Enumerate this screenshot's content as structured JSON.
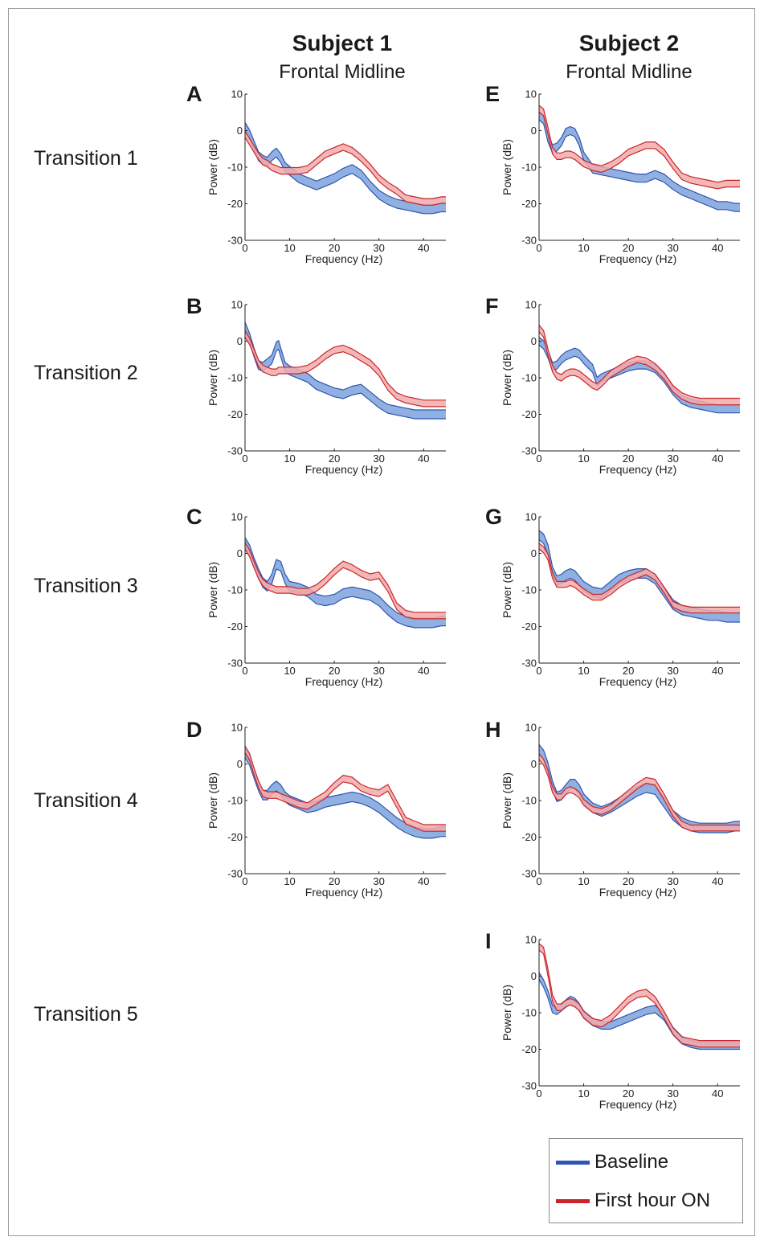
{
  "headers": {
    "subject1": {
      "title": "Subject 1",
      "region": "Frontal Midline"
    },
    "subject2": {
      "title": "Subject 2",
      "region": "Frontal Midline"
    }
  },
  "transitions": [
    "Transition 1",
    "Transition 2",
    "Transition 3",
    "Transition 4",
    "Transition 5"
  ],
  "legend": {
    "baseline": {
      "label": "Baseline",
      "color": "#2f56b0"
    },
    "first_hour": {
      "label": "First hour ON",
      "color": "#c8262a"
    }
  },
  "colors": {
    "baseline_fill": "#7ea2dd",
    "first_hour_fill": "#f2aaaa"
  },
  "chart_data": [
    {
      "panel": "A",
      "type": "line",
      "xlabel": "Frequency (Hz)",
      "ylabel": "Power (dB)",
      "xlim": [
        0,
        45
      ],
      "ylim": [
        -30,
        10
      ],
      "xticks": [
        0,
        10,
        20,
        30,
        40
      ],
      "yticks": [
        10,
        0,
        -10,
        -20,
        -30
      ],
      "x": [
        0,
        1,
        2,
        3,
        4,
        5,
        6,
        7,
        8,
        9,
        10,
        12,
        14,
        16,
        18,
        20,
        22,
        24,
        26,
        28,
        30,
        32,
        34,
        36,
        38,
        40,
        42,
        44,
        45
      ],
      "series": [
        {
          "name": "Baseline",
          "values": [
            1,
            -1,
            -4,
            -7,
            -8,
            -8.5,
            -7,
            -6,
            -7.5,
            -10,
            -11,
            -13,
            -14,
            -15,
            -14,
            -13,
            -11.5,
            -10.5,
            -12,
            -15,
            -17.5,
            -19,
            -20,
            -20.5,
            -21,
            -21.5,
            -21.5,
            -21,
            -21
          ],
          "band": 1.2
        },
        {
          "name": "First hour ON",
          "values": [
            -1,
            -3,
            -5,
            -7,
            -8.5,
            -9,
            -10,
            -10.5,
            -11,
            -11,
            -11,
            -11,
            -10.5,
            -8.5,
            -6.5,
            -5.5,
            -4.5,
            -5.5,
            -7.5,
            -10,
            -13,
            -15,
            -16.5,
            -18.5,
            -19,
            -19.5,
            -19.5,
            -19,
            -19
          ],
          "band": 0.9
        }
      ]
    },
    {
      "panel": "B",
      "type": "line",
      "xlabel": "Frequency (Hz)",
      "ylabel": "Power (dB)",
      "xlim": [
        0,
        45
      ],
      "ylim": [
        -30,
        10
      ],
      "xticks": [
        0,
        10,
        20,
        30,
        40
      ],
      "yticks": [
        10,
        0,
        -10,
        -20,
        -30
      ],
      "x": [
        0,
        1,
        2,
        3,
        4,
        5,
        6,
        7,
        7.5,
        8,
        9,
        10,
        12,
        14,
        16,
        18,
        20,
        22,
        24,
        26,
        28,
        30,
        32,
        34,
        36,
        38,
        40,
        42,
        44,
        45
      ],
      "series": [
        {
          "name": "Baseline",
          "values": [
            4,
            1,
            -3,
            -6.5,
            -7,
            -6,
            -5,
            -1.5,
            -1,
            -3,
            -7,
            -8,
            -9,
            -10,
            -12,
            -13,
            -14,
            -14.5,
            -13.5,
            -13,
            -15,
            -17,
            -18.5,
            -19,
            -19.5,
            -20,
            -20,
            -20,
            -20,
            -20
          ],
          "band": 1.2
        },
        {
          "name": "First hour ON",
          "values": [
            2,
            0,
            -3,
            -6,
            -7.5,
            -8,
            -8.5,
            -8.5,
            -8,
            -8,
            -8,
            -8,
            -8,
            -7.5,
            -6,
            -4,
            -2.5,
            -2,
            -3,
            -4.5,
            -6,
            -8.5,
            -12.5,
            -15,
            -16,
            -16.5,
            -17,
            -17,
            -17,
            -17
          ],
          "band": 0.9
        }
      ]
    },
    {
      "panel": "C",
      "type": "line",
      "xlabel": "Frequency (Hz)",
      "ylabel": "Power (dB)",
      "xlim": [
        0,
        45
      ],
      "ylim": [
        -30,
        10
      ],
      "xticks": [
        0,
        10,
        20,
        30,
        40
      ],
      "yticks": [
        10,
        0,
        -10,
        -20,
        -30
      ],
      "x": [
        0,
        1,
        2,
        3,
        4,
        5,
        6,
        7,
        8,
        9,
        10,
        12,
        14,
        16,
        18,
        20,
        22,
        24,
        26,
        28,
        30,
        32,
        34,
        36,
        38,
        40,
        42,
        44,
        45
      ],
      "series": [
        {
          "name": "Baseline",
          "values": [
            3,
            1,
            -2.5,
            -5.5,
            -8,
            -9,
            -7,
            -3,
            -3.5,
            -7,
            -9,
            -9.5,
            -10.5,
            -12.5,
            -13,
            -12.5,
            -11,
            -10.5,
            -11,
            -11.5,
            -13,
            -15.5,
            -17.5,
            -18.5,
            -19,
            -19,
            -19,
            -18.5,
            -18.5
          ],
          "band": 1.3
        },
        {
          "name": "First hour ON",
          "values": [
            2,
            0,
            -3,
            -6,
            -8,
            -9,
            -9.5,
            -10,
            -10,
            -10,
            -10,
            -10.5,
            -10.5,
            -9.5,
            -7.5,
            -5,
            -3,
            -4,
            -5.5,
            -6.5,
            -6,
            -9.5,
            -14.5,
            -16.5,
            -17,
            -17,
            -17,
            -17,
            -17
          ],
          "band": 0.9
        }
      ]
    },
    {
      "panel": "D",
      "type": "line",
      "xlabel": "Frequency (Hz)",
      "ylabel": "Power (dB)",
      "xlim": [
        0,
        45
      ],
      "ylim": [
        -30,
        10
      ],
      "xticks": [
        0,
        10,
        20,
        30,
        40
      ],
      "yticks": [
        10,
        0,
        -10,
        -20,
        -30
      ],
      "x": [
        0,
        1,
        2,
        3,
        4,
        5,
        6,
        7,
        8,
        9,
        10,
        12,
        14,
        16,
        18,
        20,
        22,
        24,
        26,
        28,
        30,
        32,
        34,
        36,
        38,
        40,
        42,
        44,
        45
      ],
      "series": [
        {
          "name": "Baseline",
          "values": [
            3,
            1,
            -2.5,
            -6,
            -8.5,
            -8.5,
            -7,
            -6,
            -7,
            -9,
            -10,
            -11,
            -12,
            -11.5,
            -10.5,
            -10,
            -9.5,
            -9,
            -9.5,
            -10.5,
            -12,
            -14,
            -16,
            -17.5,
            -18.5,
            -19,
            -19,
            -18.5,
            -18.5
          ],
          "band": 1.3
        },
        {
          "name": "First hour ON",
          "values": [
            4,
            2,
            -2,
            -5.5,
            -8,
            -8.5,
            -8.5,
            -8.5,
            -9,
            -9.5,
            -10,
            -11,
            -11.5,
            -10,
            -8.5,
            -6,
            -4,
            -4.5,
            -6.5,
            -7.5,
            -8,
            -6.5,
            -11,
            -15.5,
            -16.5,
            -17.5,
            -17.5,
            -17.5,
            -17.5
          ],
          "band": 0.9
        }
      ]
    },
    {
      "panel": "E",
      "type": "line",
      "xlabel": "Frequency (Hz)",
      "ylabel": "Power (dB)",
      "xlim": [
        0,
        45
      ],
      "ylim": [
        -30,
        10
      ],
      "xticks": [
        0,
        10,
        20,
        30,
        40
      ],
      "yticks": [
        10,
        0,
        -10,
        -20,
        -30
      ],
      "x": [
        0,
        1,
        2,
        3,
        4,
        5,
        6,
        7,
        8,
        9,
        10,
        12,
        14,
        16,
        18,
        20,
        22,
        24,
        26,
        28,
        30,
        32,
        34,
        36,
        38,
        40,
        42,
        44,
        45
      ],
      "series": [
        {
          "name": "Baseline",
          "values": [
            4,
            3,
            -2,
            -5,
            -4.5,
            -3,
            -0.5,
            0,
            -0.5,
            -3,
            -7,
            -10.5,
            -11,
            -11.5,
            -12,
            -12.5,
            -13,
            -13,
            -12,
            -13,
            -15,
            -16.5,
            -17.5,
            -18.5,
            -19.5,
            -20.5,
            -20.5,
            -21,
            -21
          ],
          "band": 1.1
        },
        {
          "name": "First hour ON",
          "values": [
            6,
            5,
            0,
            -5.5,
            -7,
            -7,
            -6.5,
            -6.5,
            -7,
            -8,
            -9,
            -10,
            -10.5,
            -9.5,
            -8,
            -6,
            -5,
            -4,
            -4,
            -6,
            -9.5,
            -12.5,
            -13.5,
            -14,
            -14.5,
            -15,
            -14.5,
            -14.5,
            -14.5
          ],
          "band": 0.9
        }
      ]
    },
    {
      "panel": "F",
      "type": "line",
      "xlabel": "Frequency (Hz)",
      "ylabel": "Power (dB)",
      "xlim": [
        0,
        45
      ],
      "ylim": [
        -30,
        10
      ],
      "xticks": [
        0,
        10,
        20,
        30,
        40
      ],
      "yticks": [
        10,
        0,
        -10,
        -20,
        -30
      ],
      "x": [
        0,
        1,
        2,
        3,
        4,
        5,
        6,
        7,
        8,
        9,
        10,
        12,
        13,
        14,
        16,
        18,
        20,
        22,
        24,
        26,
        28,
        30,
        32,
        34,
        36,
        38,
        40,
        42,
        44,
        45
      ],
      "series": [
        {
          "name": "Baseline",
          "values": [
            0,
            -1,
            -3.5,
            -7,
            -6.5,
            -5,
            -4,
            -3.5,
            -3,
            -3.5,
            -5,
            -7.5,
            -11,
            -10,
            -9,
            -8,
            -7,
            -6.5,
            -6.5,
            -7.5,
            -10,
            -13.5,
            -16,
            -17,
            -17.5,
            -18,
            -18.5,
            -18.5,
            -18.5,
            -18.5
          ],
          "band": 1.1
        },
        {
          "name": "First hour ON",
          "values": [
            3.5,
            2,
            -3,
            -7.5,
            -9.5,
            -10,
            -9,
            -8.5,
            -8.5,
            -9,
            -10,
            -12,
            -12.5,
            -11.5,
            -9,
            -7.5,
            -6,
            -5,
            -5.5,
            -7,
            -9.5,
            -13,
            -15,
            -16,
            -16.5,
            -16.5,
            -16.5,
            -16.5,
            -16.5,
            -16.5
          ],
          "band": 0.9
        }
      ]
    },
    {
      "panel": "G",
      "type": "line",
      "xlabel": "Frequency (Hz)",
      "ylabel": "Power (dB)",
      "xlim": [
        0,
        45
      ],
      "ylim": [
        -30,
        10
      ],
      "xticks": [
        0,
        10,
        20,
        30,
        40
      ],
      "yticks": [
        10,
        0,
        -10,
        -20,
        -30
      ],
      "x": [
        0,
        1,
        2,
        3,
        4,
        5,
        6,
        7,
        8,
        9,
        10,
        12,
        14,
        16,
        18,
        20,
        22,
        24,
        26,
        28,
        30,
        32,
        34,
        36,
        38,
        40,
        42,
        44,
        45
      ],
      "series": [
        {
          "name": "Baseline",
          "values": [
            5,
            4,
            1,
            -5,
            -7.5,
            -7,
            -6,
            -5.5,
            -6,
            -7.5,
            -9,
            -10.5,
            -11,
            -9,
            -7,
            -6,
            -5.5,
            -5.5,
            -7,
            -10.5,
            -14,
            -15.5,
            -16,
            -16.5,
            -17,
            -17,
            -17.5,
            -17.5,
            -17.5
          ],
          "band": 1.3
        },
        {
          "name": "First hour ON",
          "values": [
            2,
            1,
            -1,
            -6,
            -8.5,
            -8.5,
            -8.5,
            -8,
            -8.5,
            -9.5,
            -10.5,
            -12,
            -12,
            -10.5,
            -8.5,
            -7,
            -6,
            -5,
            -6.5,
            -10,
            -14,
            -15,
            -15.5,
            -15.5,
            -15.5,
            -15.5,
            -15.5,
            -15.5,
            -15.5
          ],
          "band": 0.8
        }
      ]
    },
    {
      "panel": "H",
      "type": "line",
      "xlabel": "Frequency (Hz)",
      "ylabel": "Power (dB)",
      "xlim": [
        0,
        45
      ],
      "ylim": [
        -30,
        10
      ],
      "xticks": [
        0,
        10,
        20,
        30,
        40
      ],
      "yticks": [
        10,
        0,
        -10,
        -20,
        -30
      ],
      "x": [
        0,
        1,
        2,
        3,
        4,
        5,
        6,
        7,
        8,
        9,
        10,
        12,
        14,
        16,
        18,
        20,
        22,
        24,
        26,
        28,
        30,
        32,
        34,
        36,
        38,
        40,
        42,
        44,
        45
      ],
      "series": [
        {
          "name": "Baseline",
          "values": [
            4,
            2.5,
            -1,
            -6,
            -9,
            -8.5,
            -7,
            -5.5,
            -5.5,
            -7,
            -9.5,
            -12,
            -13,
            -12,
            -10.5,
            -9,
            -7.5,
            -6.5,
            -7,
            -10.5,
            -14,
            -16,
            -17,
            -17.5,
            -17.5,
            -17.5,
            -17.5,
            -17,
            -17
          ],
          "band": 1.3
        },
        {
          "name": "First hour ON",
          "values": [
            2,
            0.5,
            -2.5,
            -7,
            -9,
            -9,
            -7.5,
            -7,
            -7.5,
            -8.5,
            -10.5,
            -12.5,
            -13,
            -12,
            -10,
            -8,
            -6,
            -4.5,
            -5,
            -9,
            -13.5,
            -16.5,
            -17.5,
            -17.5,
            -17.5,
            -17.5,
            -17.5,
            -17.5,
            -17.5
          ],
          "band": 0.8
        }
      ]
    },
    {
      "panel": "I",
      "type": "line",
      "xlabel": "Frequency (Hz)",
      "ylabel": "Power (dB)",
      "xlim": [
        0,
        45
      ],
      "ylim": [
        -30,
        10
      ],
      "xticks": [
        0,
        10,
        20,
        30,
        40
      ],
      "yticks": [
        10,
        0,
        -10,
        -20,
        -30
      ],
      "x": [
        0,
        1,
        2,
        3,
        4,
        5,
        6,
        7,
        8,
        9,
        10,
        12,
        14,
        16,
        18,
        20,
        22,
        24,
        26,
        28,
        30,
        32,
        34,
        36,
        38,
        40,
        42,
        44,
        45
      ],
      "series": [
        {
          "name": "Baseline",
          "values": [
            0,
            -2,
            -5,
            -9,
            -9.5,
            -8.5,
            -7.5,
            -6.5,
            -7,
            -8.5,
            -10.5,
            -12.5,
            -13.5,
            -13.5,
            -12.5,
            -11.5,
            -10.5,
            -9.5,
            -9,
            -11,
            -15,
            -17.5,
            -18.5,
            -19,
            -19,
            -19,
            -19,
            -19,
            -19
          ],
          "band": 1.0
        },
        {
          "name": "First hour ON",
          "values": [
            8,
            7,
            1,
            -6,
            -8.5,
            -8.5,
            -7.5,
            -7,
            -7.5,
            -8.5,
            -10.5,
            -12.5,
            -13,
            -11.5,
            -9,
            -6.5,
            -5,
            -4.5,
            -6.5,
            -10.5,
            -15,
            -17.5,
            -18,
            -18.5,
            -18.5,
            -18.5,
            -18.5,
            -18.5,
            -18.5
          ],
          "band": 0.9
        }
      ]
    }
  ]
}
